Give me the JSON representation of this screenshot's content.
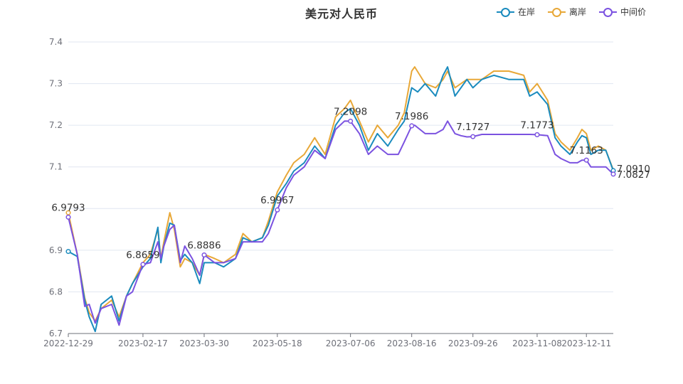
{
  "chart_data": {
    "type": "line",
    "title": "美元对人民币",
    "xlabel": "",
    "ylabel": "",
    "ylim": [
      6.7,
      7.4
    ],
    "yticks": [
      6.7,
      6.8,
      6.9,
      7.1,
      7.2,
      7.3,
      7.4
    ],
    "ytick_labels": [
      "6.7",
      "6.8",
      "6.9",
      "7.1",
      "7.2",
      "7.3",
      "7.4"
    ],
    "gridline_values": [
      6.8,
      6.9,
      7.0,
      7.1,
      7.2,
      7.3,
      7.4
    ],
    "x_range": [
      "2022-12-29",
      "2023-12-29"
    ],
    "xtick_labels": [
      "2022-12-29",
      "2023-02-17",
      "2023-03-30",
      "2023-05-18",
      "2023-07-06",
      "2023-08-16",
      "2023-09-26",
      "2023-11-08",
      "2023-12-11"
    ],
    "legend_position": "top-right",
    "grid": true,
    "series": [
      {
        "name": "在岸",
        "color": "#1a8bbe",
        "points": [
          [
            "2022-12-29",
            6.897
          ],
          [
            "2023-01-04",
            6.885
          ],
          [
            "2023-01-09",
            6.78
          ],
          [
            "2023-01-12",
            6.74
          ],
          [
            "2023-01-16",
            6.705
          ],
          [
            "2023-01-20",
            6.77
          ],
          [
            "2023-01-27",
            6.79
          ],
          [
            "2023-02-01",
            6.73
          ],
          [
            "2023-02-06",
            6.79
          ],
          [
            "2023-02-10",
            6.82
          ],
          [
            "2023-02-17",
            6.86
          ],
          [
            "2023-02-22",
            6.88
          ],
          [
            "2023-02-27",
            6.955
          ],
          [
            "2023-03-01",
            6.87
          ],
          [
            "2023-03-03",
            6.91
          ],
          [
            "2023-03-07",
            6.965
          ],
          [
            "2023-03-10",
            6.96
          ],
          [
            "2023-03-14",
            6.875
          ],
          [
            "2023-03-17",
            6.89
          ],
          [
            "2023-03-22",
            6.87
          ],
          [
            "2023-03-27",
            6.82
          ],
          [
            "2023-03-30",
            6.87
          ],
          [
            "2023-04-06",
            6.87
          ],
          [
            "2023-04-12",
            6.86
          ],
          [
            "2023-04-20",
            6.88
          ],
          [
            "2023-04-25",
            6.93
          ],
          [
            "2023-05-01",
            6.92
          ],
          [
            "2023-05-08",
            6.93
          ],
          [
            "2023-05-12",
            6.96
          ],
          [
            "2023-05-18",
            7.03
          ],
          [
            "2023-05-24",
            7.06
          ],
          [
            "2023-05-29",
            7.09
          ],
          [
            "2023-06-05",
            7.11
          ],
          [
            "2023-06-12",
            7.15
          ],
          [
            "2023-06-19",
            7.12
          ],
          [
            "2023-06-26",
            7.2
          ],
          [
            "2023-07-02",
            7.23
          ],
          [
            "2023-07-06",
            7.24
          ],
          [
            "2023-07-12",
            7.2
          ],
          [
            "2023-07-18",
            7.14
          ],
          [
            "2023-07-24",
            7.18
          ],
          [
            "2023-07-31",
            7.15
          ],
          [
            "2023-08-07",
            7.19
          ],
          [
            "2023-08-11",
            7.21
          ],
          [
            "2023-08-16",
            7.29
          ],
          [
            "2023-08-20",
            7.28
          ],
          [
            "2023-08-25",
            7.3
          ],
          [
            "2023-09-01",
            7.27
          ],
          [
            "2023-09-06",
            7.32
          ],
          [
            "2023-09-09",
            7.34
          ],
          [
            "2023-09-14",
            7.27
          ],
          [
            "2023-09-18",
            7.29
          ],
          [
            "2023-09-22",
            7.31
          ],
          [
            "2023-09-26",
            7.29
          ],
          [
            "2023-10-02",
            7.31
          ],
          [
            "2023-10-10",
            7.32
          ],
          [
            "2023-10-20",
            7.31
          ],
          [
            "2023-10-30",
            7.31
          ],
          [
            "2023-11-03",
            7.27
          ],
          [
            "2023-11-08",
            7.28
          ],
          [
            "2023-11-15",
            7.25
          ],
          [
            "2023-11-20",
            7.17
          ],
          [
            "2023-11-24",
            7.15
          ],
          [
            "2023-11-30",
            7.13
          ],
          [
            "2023-12-05",
            7.16
          ],
          [
            "2023-12-08",
            7.175
          ],
          [
            "2023-12-11",
            7.17
          ],
          [
            "2023-12-14",
            7.13
          ],
          [
            "2023-12-19",
            7.14
          ],
          [
            "2023-12-24",
            7.14
          ],
          [
            "2023-12-29",
            7.091
          ]
        ]
      },
      {
        "name": "离岸",
        "color": "#e8a838",
        "points": [
          [
            "2022-12-29",
            6.99
          ],
          [
            "2023-01-04",
            6.89
          ],
          [
            "2023-01-09",
            6.785
          ],
          [
            "2023-01-12",
            6.75
          ],
          [
            "2023-01-16",
            6.73
          ],
          [
            "2023-01-20",
            6.76
          ],
          [
            "2023-01-27",
            6.78
          ],
          [
            "2023-02-01",
            6.74
          ],
          [
            "2023-02-06",
            6.79
          ],
          [
            "2023-02-10",
            6.82
          ],
          [
            "2023-02-17",
            6.87
          ],
          [
            "2023-02-22",
            6.89
          ],
          [
            "2023-02-27",
            6.95
          ],
          [
            "2023-03-01",
            6.88
          ],
          [
            "2023-03-03",
            6.92
          ],
          [
            "2023-03-07",
            6.99
          ],
          [
            "2023-03-10",
            6.95
          ],
          [
            "2023-03-14",
            6.86
          ],
          [
            "2023-03-17",
            6.88
          ],
          [
            "2023-03-22",
            6.87
          ],
          [
            "2023-03-27",
            6.84
          ],
          [
            "2023-03-30",
            6.89
          ],
          [
            "2023-04-06",
            6.88
          ],
          [
            "2023-04-12",
            6.87
          ],
          [
            "2023-04-20",
            6.89
          ],
          [
            "2023-04-25",
            6.94
          ],
          [
            "2023-05-01",
            6.92
          ],
          [
            "2023-05-08",
            6.93
          ],
          [
            "2023-05-12",
            6.97
          ],
          [
            "2023-05-18",
            7.04
          ],
          [
            "2023-05-24",
            7.08
          ],
          [
            "2023-05-29",
            7.11
          ],
          [
            "2023-06-05",
            7.13
          ],
          [
            "2023-06-12",
            7.17
          ],
          [
            "2023-06-19",
            7.13
          ],
          [
            "2023-06-26",
            7.22
          ],
          [
            "2023-07-02",
            7.24
          ],
          [
            "2023-07-06",
            7.26
          ],
          [
            "2023-07-12",
            7.21
          ],
          [
            "2023-07-18",
            7.16
          ],
          [
            "2023-07-24",
            7.2
          ],
          [
            "2023-07-31",
            7.17
          ],
          [
            "2023-08-07",
            7.2
          ],
          [
            "2023-08-11",
            7.23
          ],
          [
            "2023-08-16",
            7.33
          ],
          [
            "2023-08-18",
            7.34
          ],
          [
            "2023-08-25",
            7.3
          ],
          [
            "2023-09-01",
            7.29
          ],
          [
            "2023-09-06",
            7.31
          ],
          [
            "2023-09-09",
            7.33
          ],
          [
            "2023-09-14",
            7.29
          ],
          [
            "2023-09-18",
            7.3
          ],
          [
            "2023-09-22",
            7.31
          ],
          [
            "2023-09-26",
            7.31
          ],
          [
            "2023-10-02",
            7.31
          ],
          [
            "2023-10-10",
            7.33
          ],
          [
            "2023-10-20",
            7.33
          ],
          [
            "2023-10-30",
            7.32
          ],
          [
            "2023-11-03",
            7.28
          ],
          [
            "2023-11-08",
            7.3
          ],
          [
            "2023-11-15",
            7.26
          ],
          [
            "2023-11-20",
            7.18
          ],
          [
            "2023-11-24",
            7.16
          ],
          [
            "2023-11-30",
            7.14
          ],
          [
            "2023-12-05",
            7.17
          ],
          [
            "2023-12-08",
            7.19
          ],
          [
            "2023-12-11",
            7.18
          ],
          [
            "2023-12-14",
            7.14
          ],
          [
            "2023-12-19",
            7.15
          ],
          [
            "2023-12-24",
            7.14
          ],
          [
            "2023-12-29",
            7.093
          ]
        ]
      },
      {
        "name": "中间价",
        "color": "#7b52e0",
        "points": [
          [
            "2022-12-29",
            6.9793
          ],
          [
            "2023-01-04",
            6.89
          ],
          [
            "2023-01-09",
            6.765
          ],
          [
            "2023-01-12",
            6.77
          ],
          [
            "2023-01-16",
            6.725
          ],
          [
            "2023-01-20",
            6.76
          ],
          [
            "2023-01-27",
            6.77
          ],
          [
            "2023-02-01",
            6.72
          ],
          [
            "2023-02-06",
            6.79
          ],
          [
            "2023-02-10",
            6.8
          ],
          [
            "2023-02-17",
            6.8659
          ],
          [
            "2023-02-22",
            6.87
          ],
          [
            "2023-02-27",
            6.92
          ],
          [
            "2023-03-01",
            6.88
          ],
          [
            "2023-03-03",
            6.91
          ],
          [
            "2023-03-07",
            6.95
          ],
          [
            "2023-03-10",
            6.96
          ],
          [
            "2023-03-14",
            6.87
          ],
          [
            "2023-03-17",
            6.91
          ],
          [
            "2023-03-22",
            6.88
          ],
          [
            "2023-03-27",
            6.84
          ],
          [
            "2023-03-30",
            6.8886
          ],
          [
            "2023-04-06",
            6.87
          ],
          [
            "2023-04-12",
            6.87
          ],
          [
            "2023-04-20",
            6.88
          ],
          [
            "2023-04-25",
            6.92
          ],
          [
            "2023-05-01",
            6.92
          ],
          [
            "2023-05-08",
            6.92
          ],
          [
            "2023-05-12",
            6.94
          ],
          [
            "2023-05-18",
            6.9967
          ],
          [
            "2023-05-24",
            7.05
          ],
          [
            "2023-05-29",
            7.08
          ],
          [
            "2023-06-05",
            7.1
          ],
          [
            "2023-06-12",
            7.14
          ],
          [
            "2023-06-19",
            7.12
          ],
          [
            "2023-06-26",
            7.19
          ],
          [
            "2023-07-02",
            7.21
          ],
          [
            "2023-07-06",
            7.2098
          ],
          [
            "2023-07-12",
            7.18
          ],
          [
            "2023-07-18",
            7.13
          ],
          [
            "2023-07-24",
            7.15
          ],
          [
            "2023-07-31",
            7.13
          ],
          [
            "2023-08-07",
            7.13
          ],
          [
            "2023-08-11",
            7.16
          ],
          [
            "2023-08-16",
            7.1986
          ],
          [
            "2023-08-18",
            7.2
          ],
          [
            "2023-08-25",
            7.18
          ],
          [
            "2023-09-01",
            7.18
          ],
          [
            "2023-09-06",
            7.19
          ],
          [
            "2023-09-09",
            7.21
          ],
          [
            "2023-09-14",
            7.18
          ],
          [
            "2023-09-18",
            7.175
          ],
          [
            "2023-09-22",
            7.172
          ],
          [
            "2023-09-26",
            7.1727
          ],
          [
            "2023-10-02",
            7.178
          ],
          [
            "2023-10-10",
            7.178
          ],
          [
            "2023-10-20",
            7.178
          ],
          [
            "2023-10-30",
            7.178
          ],
          [
            "2023-11-03",
            7.178
          ],
          [
            "2023-11-08",
            7.1773
          ],
          [
            "2023-11-15",
            7.175
          ],
          [
            "2023-11-20",
            7.13
          ],
          [
            "2023-11-24",
            7.12
          ],
          [
            "2023-11-30",
            7.11
          ],
          [
            "2023-12-05",
            7.11
          ],
          [
            "2023-12-08",
            7.116
          ],
          [
            "2023-12-11",
            7.1163
          ],
          [
            "2023-12-14",
            7.1
          ],
          [
            "2023-12-19",
            7.1
          ],
          [
            "2023-12-24",
            7.1
          ],
          [
            "2023-12-29",
            7.0827
          ]
        ]
      }
    ],
    "data_labels": [
      {
        "series": "中间价",
        "date": "2022-12-29",
        "value": 6.9793,
        "text": "6.9793"
      },
      {
        "series": "中间价",
        "date": "2023-02-17",
        "value": 6.8659,
        "text": "6.8659"
      },
      {
        "series": "中间价",
        "date": "2023-03-30",
        "value": 6.8886,
        "text": "6.8886"
      },
      {
        "series": "中间价",
        "date": "2023-05-18",
        "value": 6.9967,
        "text": "6.9967"
      },
      {
        "series": "中间价",
        "date": "2023-07-06",
        "value": 7.2098,
        "text": "7.2098"
      },
      {
        "series": "中间价",
        "date": "2023-08-16",
        "value": 7.1986,
        "text": "7.1986"
      },
      {
        "series": "中间价",
        "date": "2023-09-26",
        "value": 7.1727,
        "text": "7.1727"
      },
      {
        "series": "中间价",
        "date": "2023-11-08",
        "value": 7.1773,
        "text": "7.1773"
      },
      {
        "series": "中间价",
        "date": "2023-12-11",
        "value": 7.1163,
        "text": "7.1163"
      },
      {
        "series": "中间价",
        "date": "2023-12-29",
        "value": 7.0827,
        "text": "7.0827"
      },
      {
        "series": "在岸",
        "date": "2023-12-29",
        "value": 7.091,
        "text": "7.0910"
      }
    ]
  }
}
